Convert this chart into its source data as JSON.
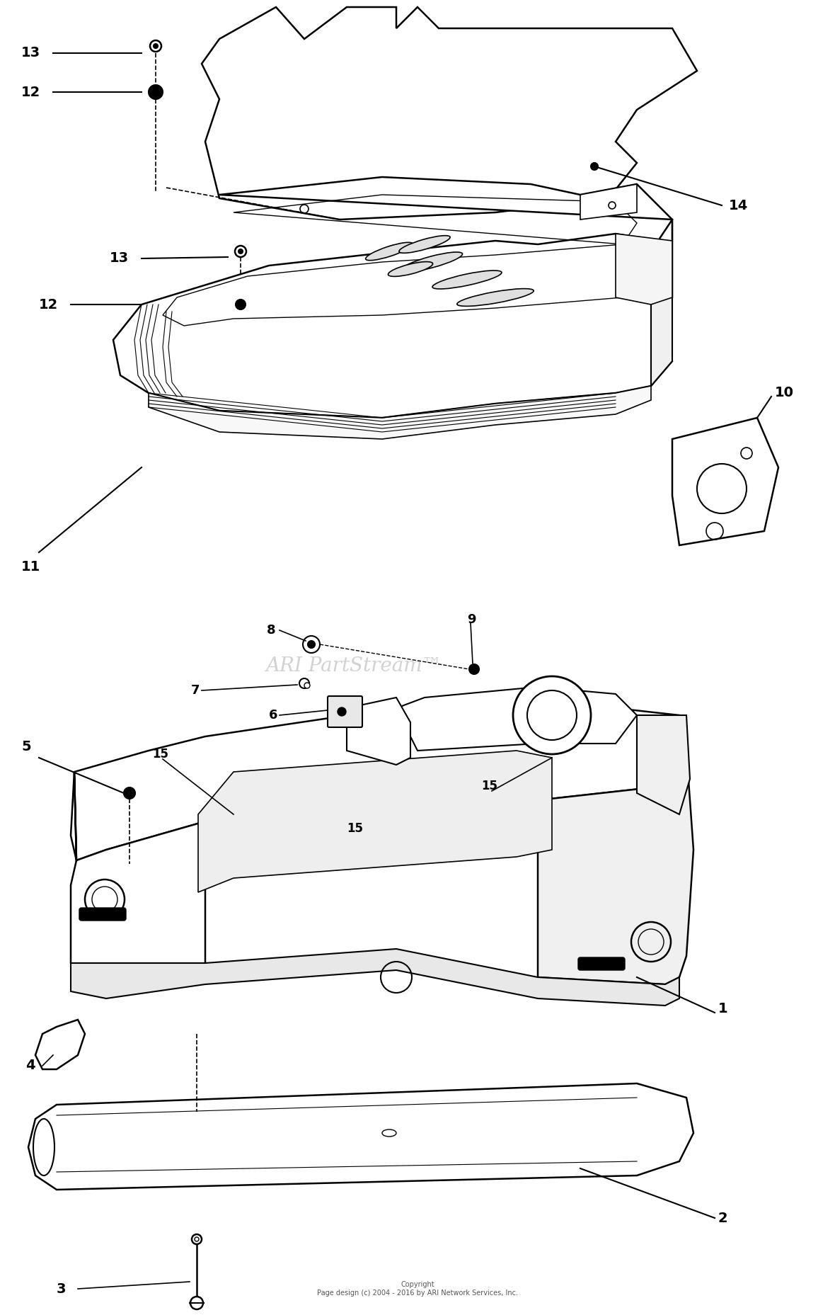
{
  "background_color": "#ffffff",
  "line_color": "#000000",
  "watermark_text": "ARI PartStream™",
  "copyright_text": "Copyright\nPage design (c) 2004 - 2016 by ARI Network Services, Inc.",
  "fig_width": 11.8,
  "fig_height": 18.57,
  "dpi": 100
}
